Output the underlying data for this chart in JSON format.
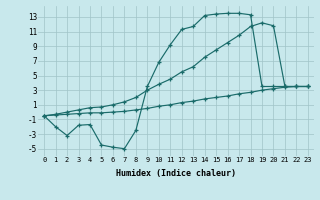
{
  "bg_color": "#c8e8ec",
  "grid_color": "#a0c4c8",
  "line_color": "#1a6b6a",
  "xlabel": "Humidex (Indice chaleur)",
  "xlim": [
    -0.5,
    23.5
  ],
  "ylim": [
    -6.0,
    14.5
  ],
  "xticks": [
    0,
    1,
    2,
    3,
    4,
    5,
    6,
    7,
    8,
    9,
    10,
    11,
    12,
    13,
    14,
    15,
    16,
    17,
    18,
    19,
    20,
    21,
    22,
    23
  ],
  "yticks": [
    -5,
    -3,
    -1,
    1,
    3,
    5,
    7,
    9,
    11,
    13
  ],
  "curve1_x": [
    0,
    1,
    2,
    3,
    4,
    5,
    6,
    7,
    8,
    9,
    10,
    11,
    12,
    13,
    14,
    15,
    16,
    17,
    18,
    19,
    20,
    21,
    22,
    23
  ],
  "curve1_y": [
    -0.5,
    -2.0,
    -3.2,
    -1.8,
    -1.7,
    -4.5,
    -4.8,
    -5.0,
    -2.5,
    3.5,
    6.8,
    9.2,
    11.3,
    11.7,
    13.2,
    13.4,
    13.5,
    13.5,
    13.3,
    3.5,
    3.5,
    3.5,
    3.5,
    3.5
  ],
  "curve2_x": [
    0,
    1,
    2,
    3,
    4,
    5,
    6,
    7,
    8,
    9,
    10,
    11,
    12,
    13,
    14,
    15,
    16,
    17,
    18,
    19,
    20,
    21,
    22,
    23
  ],
  "curve2_y": [
    -0.5,
    -0.3,
    0.0,
    0.3,
    0.6,
    0.7,
    1.0,
    1.4,
    2.0,
    3.0,
    3.8,
    4.5,
    5.5,
    6.2,
    7.5,
    8.5,
    9.5,
    10.5,
    11.7,
    12.2,
    11.8,
    3.5,
    3.5,
    3.5
  ],
  "curve3_x": [
    0,
    1,
    2,
    3,
    4,
    5,
    6,
    7,
    8,
    9,
    10,
    11,
    12,
    13,
    14,
    15,
    16,
    17,
    18,
    19,
    20,
    21,
    22,
    23
  ],
  "curve3_y": [
    -0.5,
    -0.4,
    -0.3,
    -0.2,
    -0.1,
    -0.1,
    0.0,
    0.1,
    0.3,
    0.5,
    0.8,
    1.0,
    1.3,
    1.5,
    1.8,
    2.0,
    2.2,
    2.5,
    2.7,
    3.0,
    3.2,
    3.4,
    3.5,
    3.5
  ]
}
